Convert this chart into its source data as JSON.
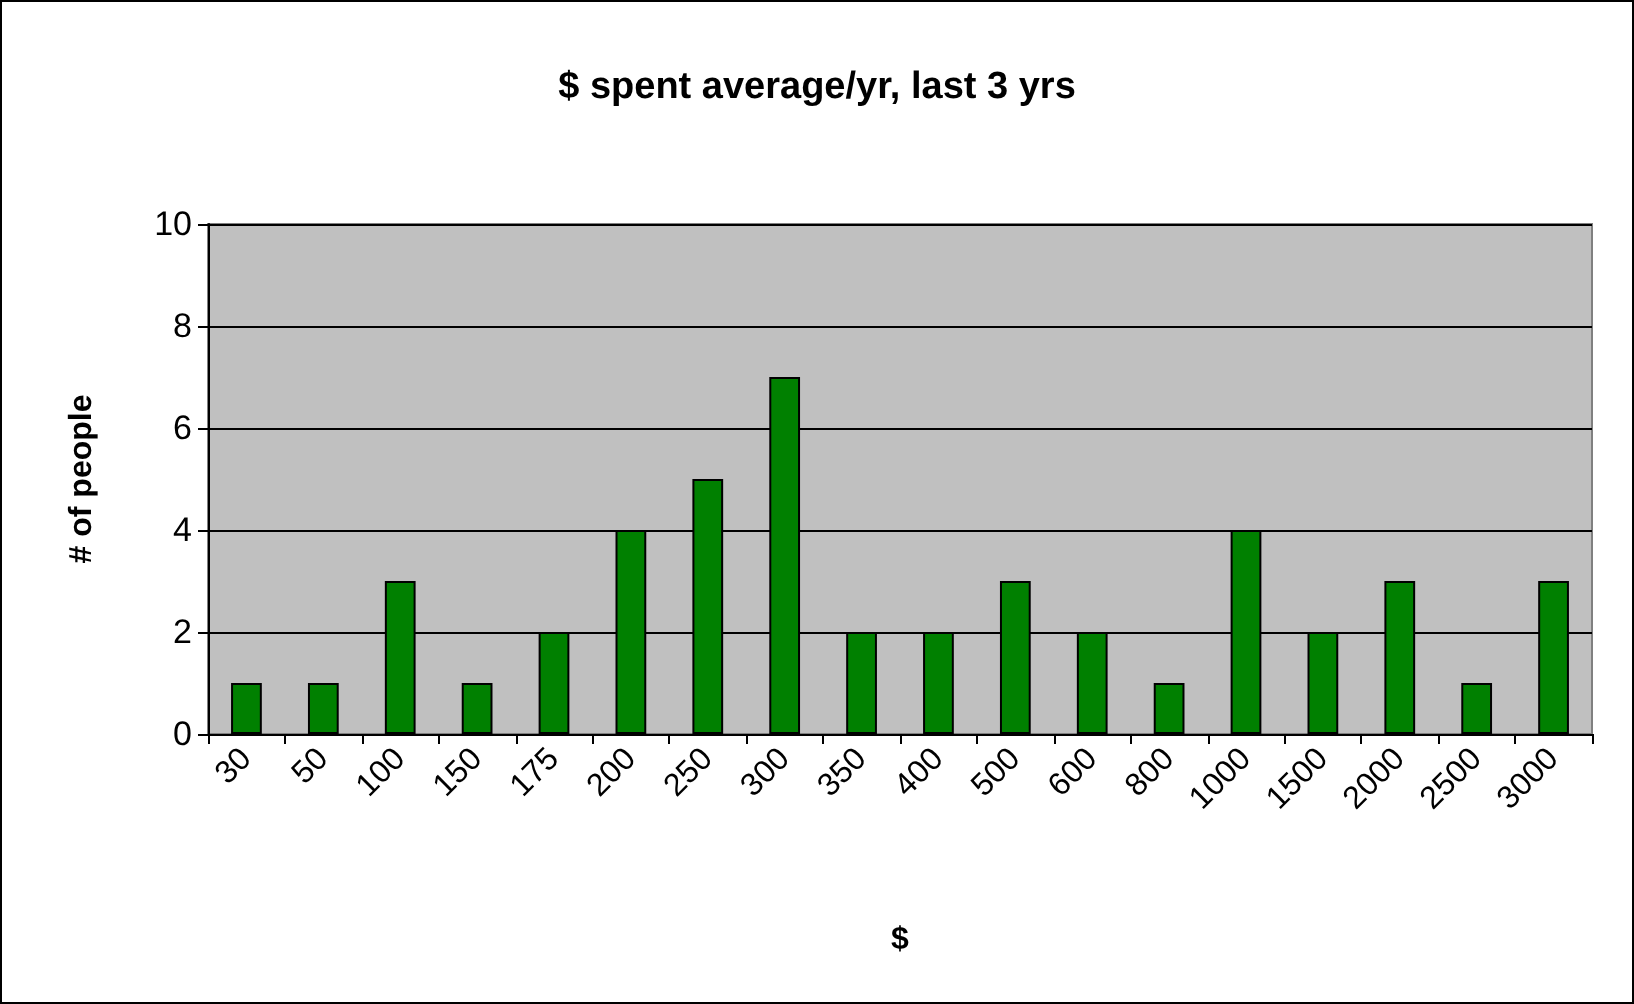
{
  "chart_data": {
    "type": "bar",
    "title": "$ spent average/yr, last 3 yrs",
    "xlabel": "$",
    "ylabel": "# of people",
    "categories": [
      "30",
      "50",
      "100",
      "150",
      "175",
      "200",
      "250",
      "300",
      "350",
      "400",
      "500",
      "600",
      "800",
      "1000",
      "1500",
      "2000",
      "2500",
      "3000"
    ],
    "values": [
      1,
      1,
      3,
      1,
      2,
      4,
      5,
      7,
      2,
      2,
      3,
      2,
      1,
      4,
      2,
      3,
      1,
      3
    ],
    "color": "#008000",
    "ylim": [
      0,
      10
    ],
    "yticks": [
      0,
      2,
      4,
      6,
      8,
      10
    ],
    "grid": "y"
  }
}
